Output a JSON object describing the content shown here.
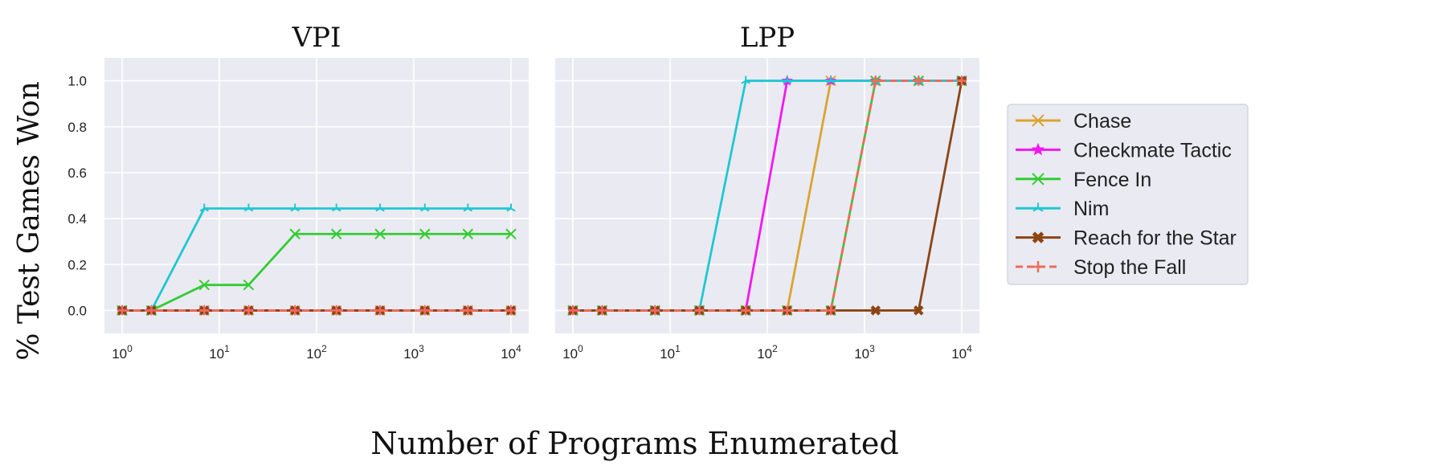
{
  "figure": {
    "xlabel": "Number of Programs Enumerated",
    "ylabel": "% Test Games Won"
  },
  "legend": {
    "placement": "right",
    "entries": [
      {
        "name": "Chase",
        "color": "#DAA430",
        "marker": "x",
        "dash": "solid"
      },
      {
        "name": "Checkmate Tactic",
        "color": "#F217F2",
        "marker": "star",
        "dash": "solid"
      },
      {
        "name": "Fence In",
        "color": "#33CC33",
        "marker": "x",
        "dash": "solid"
      },
      {
        "name": "Nim",
        "color": "#1FC8D1",
        "marker": "tri",
        "dash": "solid"
      },
      {
        "name": "Reach for the Star",
        "color": "#8B4513",
        "marker": "X",
        "dash": "solid"
      },
      {
        "name": "Stop the Fall",
        "color": "#F06A5A",
        "marker": "plus",
        "dash": "dashed"
      }
    ]
  },
  "chart_data": [
    {
      "type": "line",
      "title": "VPI",
      "xscale": "log",
      "xlim": [
        1,
        10000
      ],
      "ylim": [
        -0.1,
        1.1
      ],
      "yticks": [
        "0.0",
        "0.2",
        "0.4",
        "0.6",
        "0.8",
        "1.0"
      ],
      "xticks": [
        {
          "base": "10",
          "exp": "0"
        },
        {
          "base": "10",
          "exp": "1"
        },
        {
          "base": "10",
          "exp": "2"
        },
        {
          "base": "10",
          "exp": "3"
        },
        {
          "base": "10",
          "exp": "4"
        }
      ],
      "x": [
        1,
        2,
        7,
        20,
        60,
        160,
        450,
        1300,
        3600,
        10000
      ],
      "series": [
        {
          "name": "Chase",
          "values": [
            0,
            0,
            0,
            0,
            0,
            0,
            0,
            0,
            0,
            0
          ]
        },
        {
          "name": "Checkmate Tactic",
          "values": [
            0,
            0,
            0,
            0,
            0,
            0,
            0,
            0,
            0,
            0
          ]
        },
        {
          "name": "Fence In",
          "values": [
            0,
            0,
            0.111,
            0.111,
            0.333,
            0.333,
            0.333,
            0.333,
            0.333,
            0.333
          ]
        },
        {
          "name": "Nim",
          "values": [
            0,
            0,
            0.444,
            0.444,
            0.444,
            0.444,
            0.444,
            0.444,
            0.444,
            0.444
          ]
        },
        {
          "name": "Reach for the Star",
          "values": [
            0,
            0,
            0,
            0,
            0,
            0,
            0,
            0,
            0,
            0
          ]
        },
        {
          "name": "Stop the Fall",
          "values": [
            0,
            0,
            0,
            0,
            0,
            0,
            0,
            0,
            0,
            0
          ]
        }
      ]
    },
    {
      "type": "line",
      "title": "LPP",
      "xscale": "log",
      "xlim": [
        1,
        10000
      ],
      "ylim": [
        -0.1,
        1.1
      ],
      "yticks": [
        "0.0",
        "0.2",
        "0.4",
        "0.6",
        "0.8",
        "1.0"
      ],
      "xticks": [
        {
          "base": "10",
          "exp": "0"
        },
        {
          "base": "10",
          "exp": "1"
        },
        {
          "base": "10",
          "exp": "2"
        },
        {
          "base": "10",
          "exp": "3"
        },
        {
          "base": "10",
          "exp": "4"
        }
      ],
      "x": [
        1,
        2,
        7,
        20,
        60,
        160,
        450,
        1300,
        3600,
        10000
      ],
      "series": [
        {
          "name": "Chase",
          "values": [
            0,
            0,
            0,
            0,
            0,
            0,
            1,
            1,
            1,
            1
          ]
        },
        {
          "name": "Checkmate Tactic",
          "values": [
            0,
            0,
            0,
            0,
            0,
            1,
            1,
            1,
            1,
            1
          ]
        },
        {
          "name": "Fence In",
          "values": [
            0,
            0,
            0,
            0,
            0,
            0,
            0,
            1,
            1,
            1
          ]
        },
        {
          "name": "Nim",
          "values": [
            0,
            0,
            0,
            0,
            1,
            1,
            1,
            1,
            1,
            1
          ]
        },
        {
          "name": "Reach for the Star",
          "values": [
            0,
            0,
            0,
            0,
            0,
            0,
            0,
            0,
            0,
            1
          ]
        },
        {
          "name": "Stop the Fall",
          "values": [
            0,
            0,
            0,
            0,
            0,
            0,
            0,
            1,
            1,
            1
          ]
        }
      ]
    }
  ]
}
